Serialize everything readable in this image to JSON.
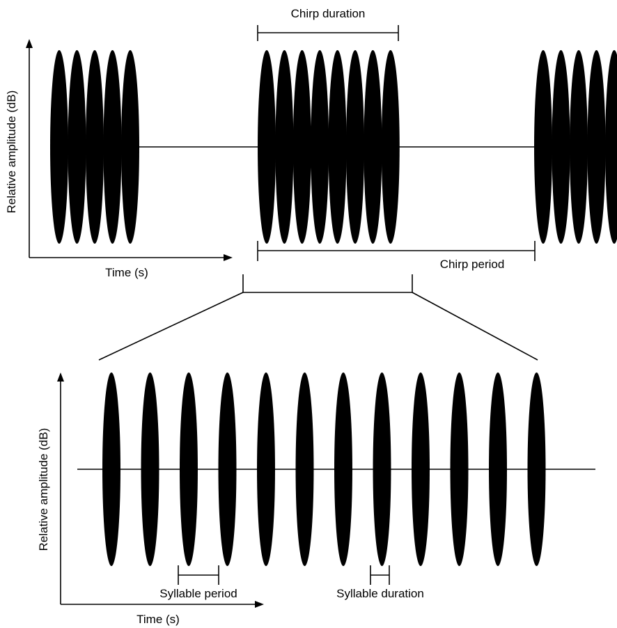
{
  "colors": {
    "ink": "#000000",
    "background": "#ffffff"
  },
  "top_panel": {
    "y_axis_label": "Relative amplitude (dB)",
    "x_axis_label": "Time (s)",
    "chirp_duration_label": "Chirp duration",
    "chirp_period_label": "Chirp period",
    "chirps": [
      {
        "syllables_shown": 5
      },
      {
        "syllables_shown": 8
      },
      {
        "syllables_shown": 5
      }
    ]
  },
  "bottom_panel": {
    "y_axis_label": "Relative amplitude (dB)",
    "x_axis_label": "Time (s)",
    "syllable_period_label": "Syllable period",
    "syllable_duration_label": "Syllable duration",
    "syllables_shown": 12
  }
}
